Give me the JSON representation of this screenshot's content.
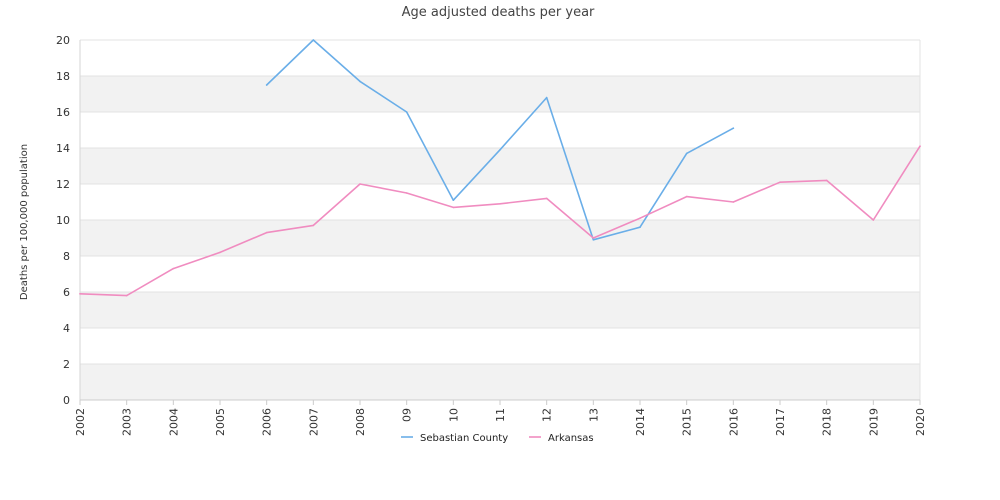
{
  "chart_data": {
    "type": "line",
    "title": "Age adjusted deaths per year",
    "ylabel": "Deaths per 100,000 population",
    "xlabel": "",
    "ylim": [
      0,
      20
    ],
    "yticks": [
      "0",
      "2",
      "4",
      "6",
      "8",
      "10",
      "12",
      "14",
      "16",
      "18",
      "20"
    ],
    "categories": [
      "2002",
      "2003",
      "2004",
      "2005",
      "2006",
      "2007",
      "2008",
      "09",
      "10",
      "11",
      "12",
      "13",
      "2014",
      "2015",
      "2016",
      "2017",
      "2018",
      "2019",
      "2020"
    ],
    "grid": "horizontal alternating bands",
    "legend_position": "bottom",
    "series": [
      {
        "name": "Sebastian County",
        "color": "#6aaee8",
        "values": [
          null,
          null,
          null,
          null,
          17.5,
          20.0,
          17.7,
          16.0,
          11.1,
          13.9,
          16.8,
          8.9,
          9.6,
          13.7,
          15.1,
          null,
          null,
          null,
          null
        ]
      },
      {
        "name": "Arkansas",
        "color": "#f08cc0",
        "values": [
          5.9,
          5.8,
          7.3,
          8.2,
          9.3,
          9.7,
          12.0,
          11.5,
          10.7,
          10.9,
          11.2,
          9.0,
          10.1,
          11.3,
          11.0,
          12.1,
          12.2,
          10.0,
          14.1
        ]
      }
    ]
  }
}
